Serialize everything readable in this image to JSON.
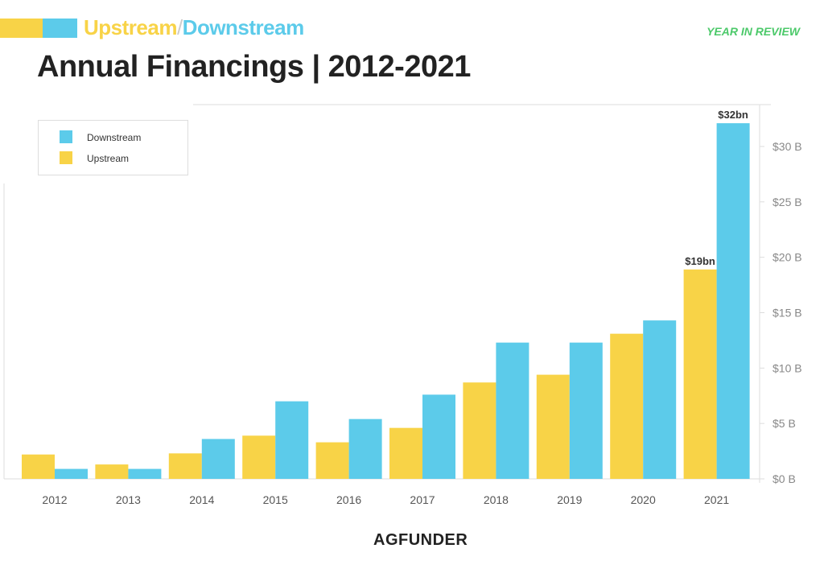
{
  "header": {
    "upstream_word": "Upstream",
    "slash": "/",
    "downstream_word": "Downstream",
    "year_in_review": "YEAR IN REVIEW"
  },
  "logo": {
    "text": "AGFUNDER"
  },
  "colors": {
    "upstream": "#f8d347",
    "downstream": "#5ccbea",
    "grid": "#dddddd",
    "label": "#555555"
  },
  "chart_data": {
    "type": "bar",
    "title": "Annual Financings | 2012-2021",
    "xlabel": "",
    "ylabel": "",
    "categories": [
      "2012",
      "2013",
      "2014",
      "2015",
      "2016",
      "2017",
      "2018",
      "2019",
      "2020",
      "2021"
    ],
    "series": [
      {
        "name": "Upstream",
        "values": [
          2.2,
          1.3,
          2.3,
          3.9,
          3.3,
          4.6,
          8.7,
          9.4,
          13.1,
          18.9
        ]
      },
      {
        "name": "Downstream",
        "values": [
          0.9,
          0.9,
          3.6,
          7.0,
          5.4,
          7.6,
          12.3,
          12.3,
          14.3,
          32.1
        ]
      }
    ],
    "legend_order": [
      "Downstream",
      "Upstream"
    ],
    "legend_position": "top-left",
    "ylim": [
      0,
      33.7
    ],
    "yticks": [
      0,
      5,
      10,
      15,
      20,
      25,
      30
    ],
    "ytick_labels": [
      "$0 B",
      "$5 B",
      "$10 B",
      "$15 B",
      "$20 B",
      "$25 B",
      "$30 B"
    ],
    "y_axis_side": "right",
    "annotations": [
      {
        "text": "$19bn",
        "category": "2021",
        "series": "Upstream"
      },
      {
        "text": "$32bn",
        "category": "2021",
        "series": "Downstream"
      }
    ]
  }
}
